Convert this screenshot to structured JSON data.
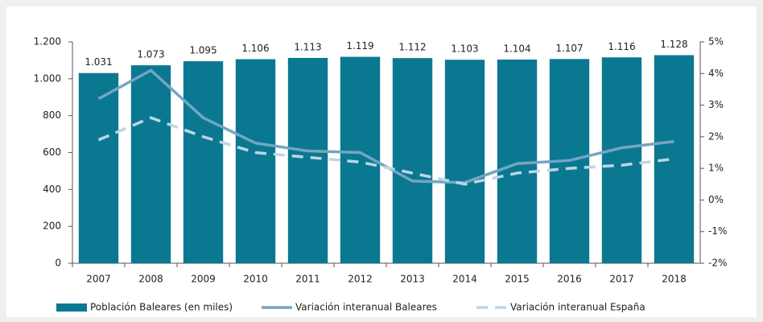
{
  "chart_data": {
    "type": "bar",
    "categories": [
      "2007",
      "2008",
      "2009",
      "2010",
      "2011",
      "2012",
      "2013",
      "2014",
      "2015",
      "2016",
      "2017",
      "2018"
    ],
    "series": [
      {
        "name": "Población Baleares (en miles)",
        "type": "bar",
        "color": "#0b7892",
        "values": [
          1031,
          1073,
          1095,
          1106,
          1113,
          1119,
          1112,
          1103,
          1104,
          1107,
          1116,
          1128
        ],
        "value_labels": [
          "1.031",
          "1.073",
          "1.095",
          "1.106",
          "1.113",
          "1.119",
          "1.112",
          "1.103",
          "1.104",
          "1.107",
          "1.116",
          "1.128"
        ]
      },
      {
        "name": "Variación interanual Baleares",
        "type": "line",
        "axis": "y2",
        "color": "#72a6c2",
        "dash": false,
        "values": [
          3.2,
          4.1,
          2.6,
          1.8,
          1.55,
          1.5,
          0.6,
          0.55,
          1.15,
          1.25,
          1.65,
          1.85
        ]
      },
      {
        "name": "Variación interanual España",
        "type": "line",
        "axis": "y2",
        "color": "#bcd6e5",
        "dash": true,
        "values": [
          1.9,
          2.6,
          2.0,
          1.5,
          1.35,
          1.2,
          0.85,
          0.5,
          0.85,
          1.0,
          1.1,
          1.3
        ]
      }
    ],
    "ylim": [
      0,
      1200
    ],
    "yticks": [
      0,
      200,
      400,
      600,
      800,
      {
        "value": 1000,
        "label": "1.000"
      },
      {
        "value": 1200,
        "label": "1.200"
      }
    ],
    "y2lim": [
      -2,
      5
    ],
    "y2ticks": [
      {
        "value": -2,
        "label": "-2%"
      },
      {
        "value": -1,
        "label": "-1%"
      },
      {
        "value": 0,
        "label": "0%"
      },
      {
        "value": 1,
        "label": "1%"
      },
      {
        "value": 2,
        "label": "2%"
      },
      {
        "value": 3,
        "label": "3%"
      },
      {
        "value": 4,
        "label": "4%"
      },
      {
        "value": 5,
        "label": "5%"
      }
    ],
    "legend": "bottom"
  }
}
